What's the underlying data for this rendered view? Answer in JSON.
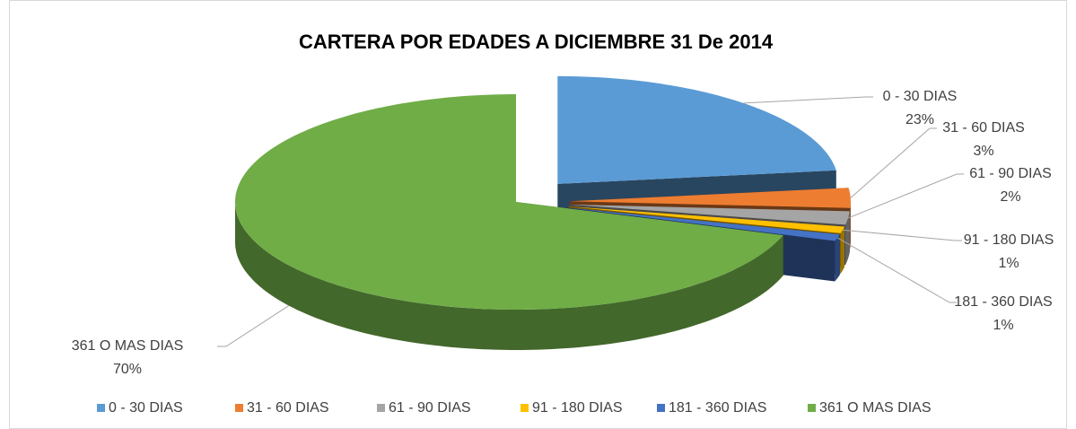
{
  "chart_data": {
    "type": "pie",
    "title": "CARTERA POR EDADES A DICIEMBRE 31 De 2014",
    "categories": [
      "0 - 30 DIAS",
      "31 - 60 DIAS",
      "61 - 90 DIAS",
      "91 - 180 DIAS",
      "181 - 360 DIAS",
      "361 O MAS DIAS"
    ],
    "values": [
      23,
      3,
      2,
      1,
      1,
      70
    ],
    "value_labels": [
      "23%",
      "3%",
      "2%",
      "1%",
      "1%",
      "70%"
    ],
    "colors": [
      "#5b9bd5",
      "#ed7d31",
      "#a5a5a5",
      "#ffc000",
      "#4472c4",
      "#70ad47"
    ],
    "legend": "bottom"
  }
}
